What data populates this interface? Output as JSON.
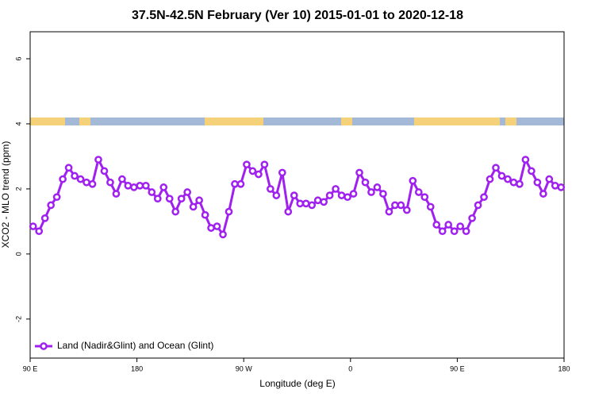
{
  "chart_data": {
    "type": "line",
    "title": "37.5N-42.5N February (Ver 10)   2015-01-01 to 2020-12-18",
    "xlabel": "Longitude (deg E)",
    "ylabel": "XCO2 - MLO trend (ppm)",
    "xlim": [
      90,
      540
    ],
    "ylim": [
      -3.2,
      6.83
    ],
    "xticks": [
      {
        "value": 90,
        "label": "90 E"
      },
      {
        "value": 180,
        "label": "180"
      },
      {
        "value": 270,
        "label": "90 W"
      },
      {
        "value": 360,
        "label": "0"
      },
      {
        "value": 450,
        "label": "90 E"
      },
      {
        "value": 540,
        "label": "180"
      }
    ],
    "yticks": [
      -2,
      0,
      2,
      4,
      6
    ],
    "legend": "bottom-left",
    "series": [
      {
        "name": "Land (Nadir&Glint) and Ocean (Glint)",
        "color": "#a020f0",
        "x": [
          92.5,
          97.5,
          102.5,
          107.5,
          112.5,
          117.5,
          122.5,
          127.5,
          132.5,
          137.5,
          142.5,
          147.5,
          152.5,
          157.5,
          162.5,
          167.5,
          172.5,
          177.5,
          182.5,
          187.5,
          192.5,
          197.5,
          202.5,
          207.5,
          212.5,
          217.5,
          222.5,
          227.5,
          232.5,
          237.5,
          242.5,
          247.5,
          252.5,
          257.5,
          262.5,
          267.5,
          272.5,
          277.5,
          282.5,
          287.5,
          292.5,
          297.5,
          302.5,
          307.5,
          312.5,
          317.5,
          322.5,
          327.5,
          332.5,
          337.5,
          342.5,
          347.5,
          352.5,
          357.5,
          362.5,
          367.5,
          372.5,
          377.5,
          382.5,
          387.5,
          392.5,
          397.5,
          402.5,
          407.5,
          412.5,
          417.5,
          422.5,
          427.5,
          432.5,
          437.5,
          442.5,
          447.5,
          452.5,
          457.5,
          462.5,
          467.5,
          472.5,
          477.5,
          482.5,
          487.5,
          492.5,
          497.5,
          502.5,
          507.5,
          512.5,
          517.5,
          522.5,
          527.5,
          532.5,
          537.5
        ],
        "values": [
          0.85,
          0.7,
          1.1,
          1.5,
          1.75,
          2.3,
          2.65,
          2.4,
          2.3,
          2.2,
          2.15,
          2.9,
          2.55,
          2.2,
          1.85,
          2.3,
          2.1,
          2.05,
          2.1,
          2.1,
          1.9,
          1.7,
          2.05,
          1.7,
          1.3,
          1.7,
          1.9,
          1.45,
          1.65,
          1.2,
          0.8,
          0.85,
          0.6,
          1.3,
          2.15,
          2.15,
          2.75,
          2.55,
          2.45,
          2.75,
          2.0,
          1.8,
          2.5,
          1.3,
          1.8,
          1.55,
          1.55,
          1.5,
          1.65,
          1.6,
          1.8,
          2.0,
          1.8,
          1.75,
          1.85,
          2.5,
          2.2,
          1.9,
          2.05,
          1.85,
          1.3,
          1.5,
          1.5,
          1.35,
          2.25,
          1.9,
          1.75,
          1.45,
          0.9,
          0.7,
          0.9,
          0.7,
          0.85,
          0.7,
          1.1,
          1.5,
          1.75,
          2.3,
          2.65,
          2.4,
          2.3,
          2.2,
          2.15,
          2.9,
          2.55,
          2.2,
          1.85,
          2.3,
          2.1,
          2.05
        ]
      }
    ]
  }
}
